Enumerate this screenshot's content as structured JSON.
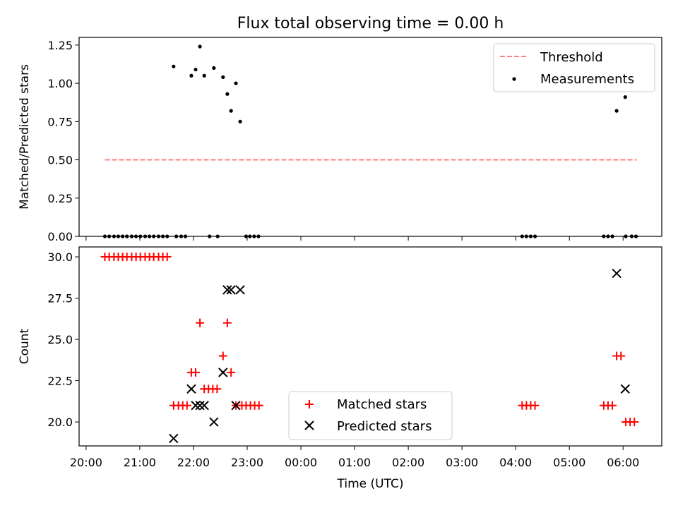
{
  "chart_data": [
    {
      "type": "scatter",
      "title": "Flux total observing time = 0.00 h",
      "xlabel": "",
      "ylabel": "Matched/Predicted stars",
      "xlim_hours": [
        19.87,
        30.72
      ],
      "ylim": [
        0,
        1.3
      ],
      "yticks": [
        0.0,
        0.25,
        0.5,
        0.75,
        1.0,
        1.25
      ],
      "ytick_labels": [
        "0.00",
        "0.25",
        "0.50",
        "0.75",
        "1.00",
        "1.25"
      ],
      "xticks_hours": [
        20,
        21,
        22,
        23,
        24,
        25,
        26,
        27,
        28,
        29,
        30
      ],
      "legend_position": "top-right",
      "legend": [
        {
          "label": "Threshold",
          "color": "#ff7f7f",
          "marker": "dashed-line"
        },
        {
          "label": "Measurements",
          "color": "#000000",
          "marker": "dot"
        }
      ],
      "threshold": {
        "value": 0.5,
        "x_start": 20.35,
        "x_end": 30.25
      },
      "series": [
        {
          "name": "Measurements",
          "points": [
            [
              20.35,
              0
            ],
            [
              20.43,
              0
            ],
            [
              20.52,
              0
            ],
            [
              20.6,
              0
            ],
            [
              20.68,
              0
            ],
            [
              20.76,
              0
            ],
            [
              20.85,
              0
            ],
            [
              20.93,
              0
            ],
            [
              21.01,
              0
            ],
            [
              21.1,
              0
            ],
            [
              21.18,
              0
            ],
            [
              21.26,
              0
            ],
            [
              21.35,
              0
            ],
            [
              21.43,
              0
            ],
            [
              21.51,
              0
            ],
            [
              21.68,
              0
            ],
            [
              21.77,
              0
            ],
            [
              21.85,
              0
            ],
            [
              22.3,
              0
            ],
            [
              22.45,
              0
            ],
            [
              22.98,
              0
            ],
            [
              23.05,
              0
            ],
            [
              23.13,
              0
            ],
            [
              23.21,
              0
            ],
            [
              28.12,
              0
            ],
            [
              28.2,
              0
            ],
            [
              28.28,
              0
            ],
            [
              28.36,
              0
            ],
            [
              29.64,
              0
            ],
            [
              29.72,
              0
            ],
            [
              29.8,
              0
            ],
            [
              30.05,
              0
            ],
            [
              30.16,
              0
            ],
            [
              30.24,
              0
            ],
            [
              21.63,
              1.11
            ],
            [
              21.96,
              1.05
            ],
            [
              22.04,
              1.09
            ],
            [
              22.12,
              1.24
            ],
            [
              22.2,
              1.05
            ],
            [
              22.38,
              1.1
            ],
            [
              22.55,
              1.04
            ],
            [
              22.63,
              0.93
            ],
            [
              22.7,
              0.82
            ],
            [
              22.79,
              1.0
            ],
            [
              22.87,
              0.75
            ],
            [
              29.88,
              0.82
            ],
            [
              30.04,
              0.91
            ]
          ]
        }
      ]
    },
    {
      "type": "scatter",
      "title": "",
      "xlabel": "Time (UTC)",
      "ylabel": "Count",
      "xlim_hours": [
        19.87,
        30.72
      ],
      "ylim": [
        18.55,
        30.6
      ],
      "yticks": [
        20.0,
        22.5,
        25.0,
        27.5,
        30.0
      ],
      "ytick_labels": [
        "20.0",
        "22.5",
        "25.0",
        "27.5",
        "30.0"
      ],
      "xticks_hours": [
        20,
        21,
        22,
        23,
        24,
        25,
        26,
        27,
        28,
        29,
        30
      ],
      "xtick_labels": [
        "20:00",
        "21:00",
        "22:00",
        "23:00",
        "00:00",
        "01:00",
        "02:00",
        "03:00",
        "04:00",
        "05:00",
        "06:00"
      ],
      "legend_position": "lower-center",
      "legend": [
        {
          "label": "Matched stars",
          "color": "#ff0000",
          "marker": "plus"
        },
        {
          "label": "Predicted stars",
          "color": "#000000",
          "marker": "x"
        }
      ],
      "series": [
        {
          "name": "Matched stars",
          "color": "#ff0000",
          "marker": "plus",
          "points": [
            [
              20.35,
              30
            ],
            [
              20.43,
              30
            ],
            [
              20.52,
              30
            ],
            [
              20.6,
              30
            ],
            [
              20.68,
              30
            ],
            [
              20.76,
              30
            ],
            [
              20.85,
              30
            ],
            [
              20.93,
              30
            ],
            [
              21.01,
              30
            ],
            [
              21.1,
              30
            ],
            [
              21.18,
              30
            ],
            [
              21.26,
              30
            ],
            [
              21.35,
              30
            ],
            [
              21.43,
              30
            ],
            [
              21.51,
              30
            ],
            [
              21.63,
              21
            ],
            [
              21.72,
              21
            ],
            [
              21.8,
              21
            ],
            [
              21.88,
              21
            ],
            [
              21.96,
              23
            ],
            [
              22.04,
              23
            ],
            [
              22.12,
              26
            ],
            [
              22.2,
              22
            ],
            [
              22.28,
              22
            ],
            [
              22.36,
              22
            ],
            [
              22.44,
              22
            ],
            [
              22.55,
              24
            ],
            [
              22.63,
              26
            ],
            [
              22.7,
              23
            ],
            [
              22.79,
              21
            ],
            [
              22.9,
              21
            ],
            [
              22.98,
              21
            ],
            [
              23.06,
              21
            ],
            [
              23.14,
              21
            ],
            [
              23.22,
              21
            ],
            [
              28.12,
              21
            ],
            [
              28.2,
              21
            ],
            [
              28.28,
              21
            ],
            [
              28.36,
              21
            ],
            [
              29.64,
              21
            ],
            [
              29.72,
              21
            ],
            [
              29.8,
              21
            ],
            [
              29.88,
              24
            ],
            [
              29.96,
              24
            ],
            [
              30.05,
              20
            ],
            [
              30.13,
              20
            ],
            [
              30.21,
              20
            ]
          ]
        },
        {
          "name": "Predicted stars",
          "color": "#000000",
          "marker": "x",
          "points": [
            [
              21.63,
              19
            ],
            [
              21.96,
              22
            ],
            [
              22.04,
              21
            ],
            [
              22.12,
              21
            ],
            [
              22.2,
              21
            ],
            [
              22.38,
              20
            ],
            [
              22.55,
              23
            ],
            [
              22.63,
              28
            ],
            [
              22.7,
              28
            ],
            [
              22.79,
              21
            ],
            [
              22.87,
              28
            ],
            [
              29.88,
              29
            ],
            [
              30.04,
              22
            ]
          ]
        }
      ]
    }
  ]
}
